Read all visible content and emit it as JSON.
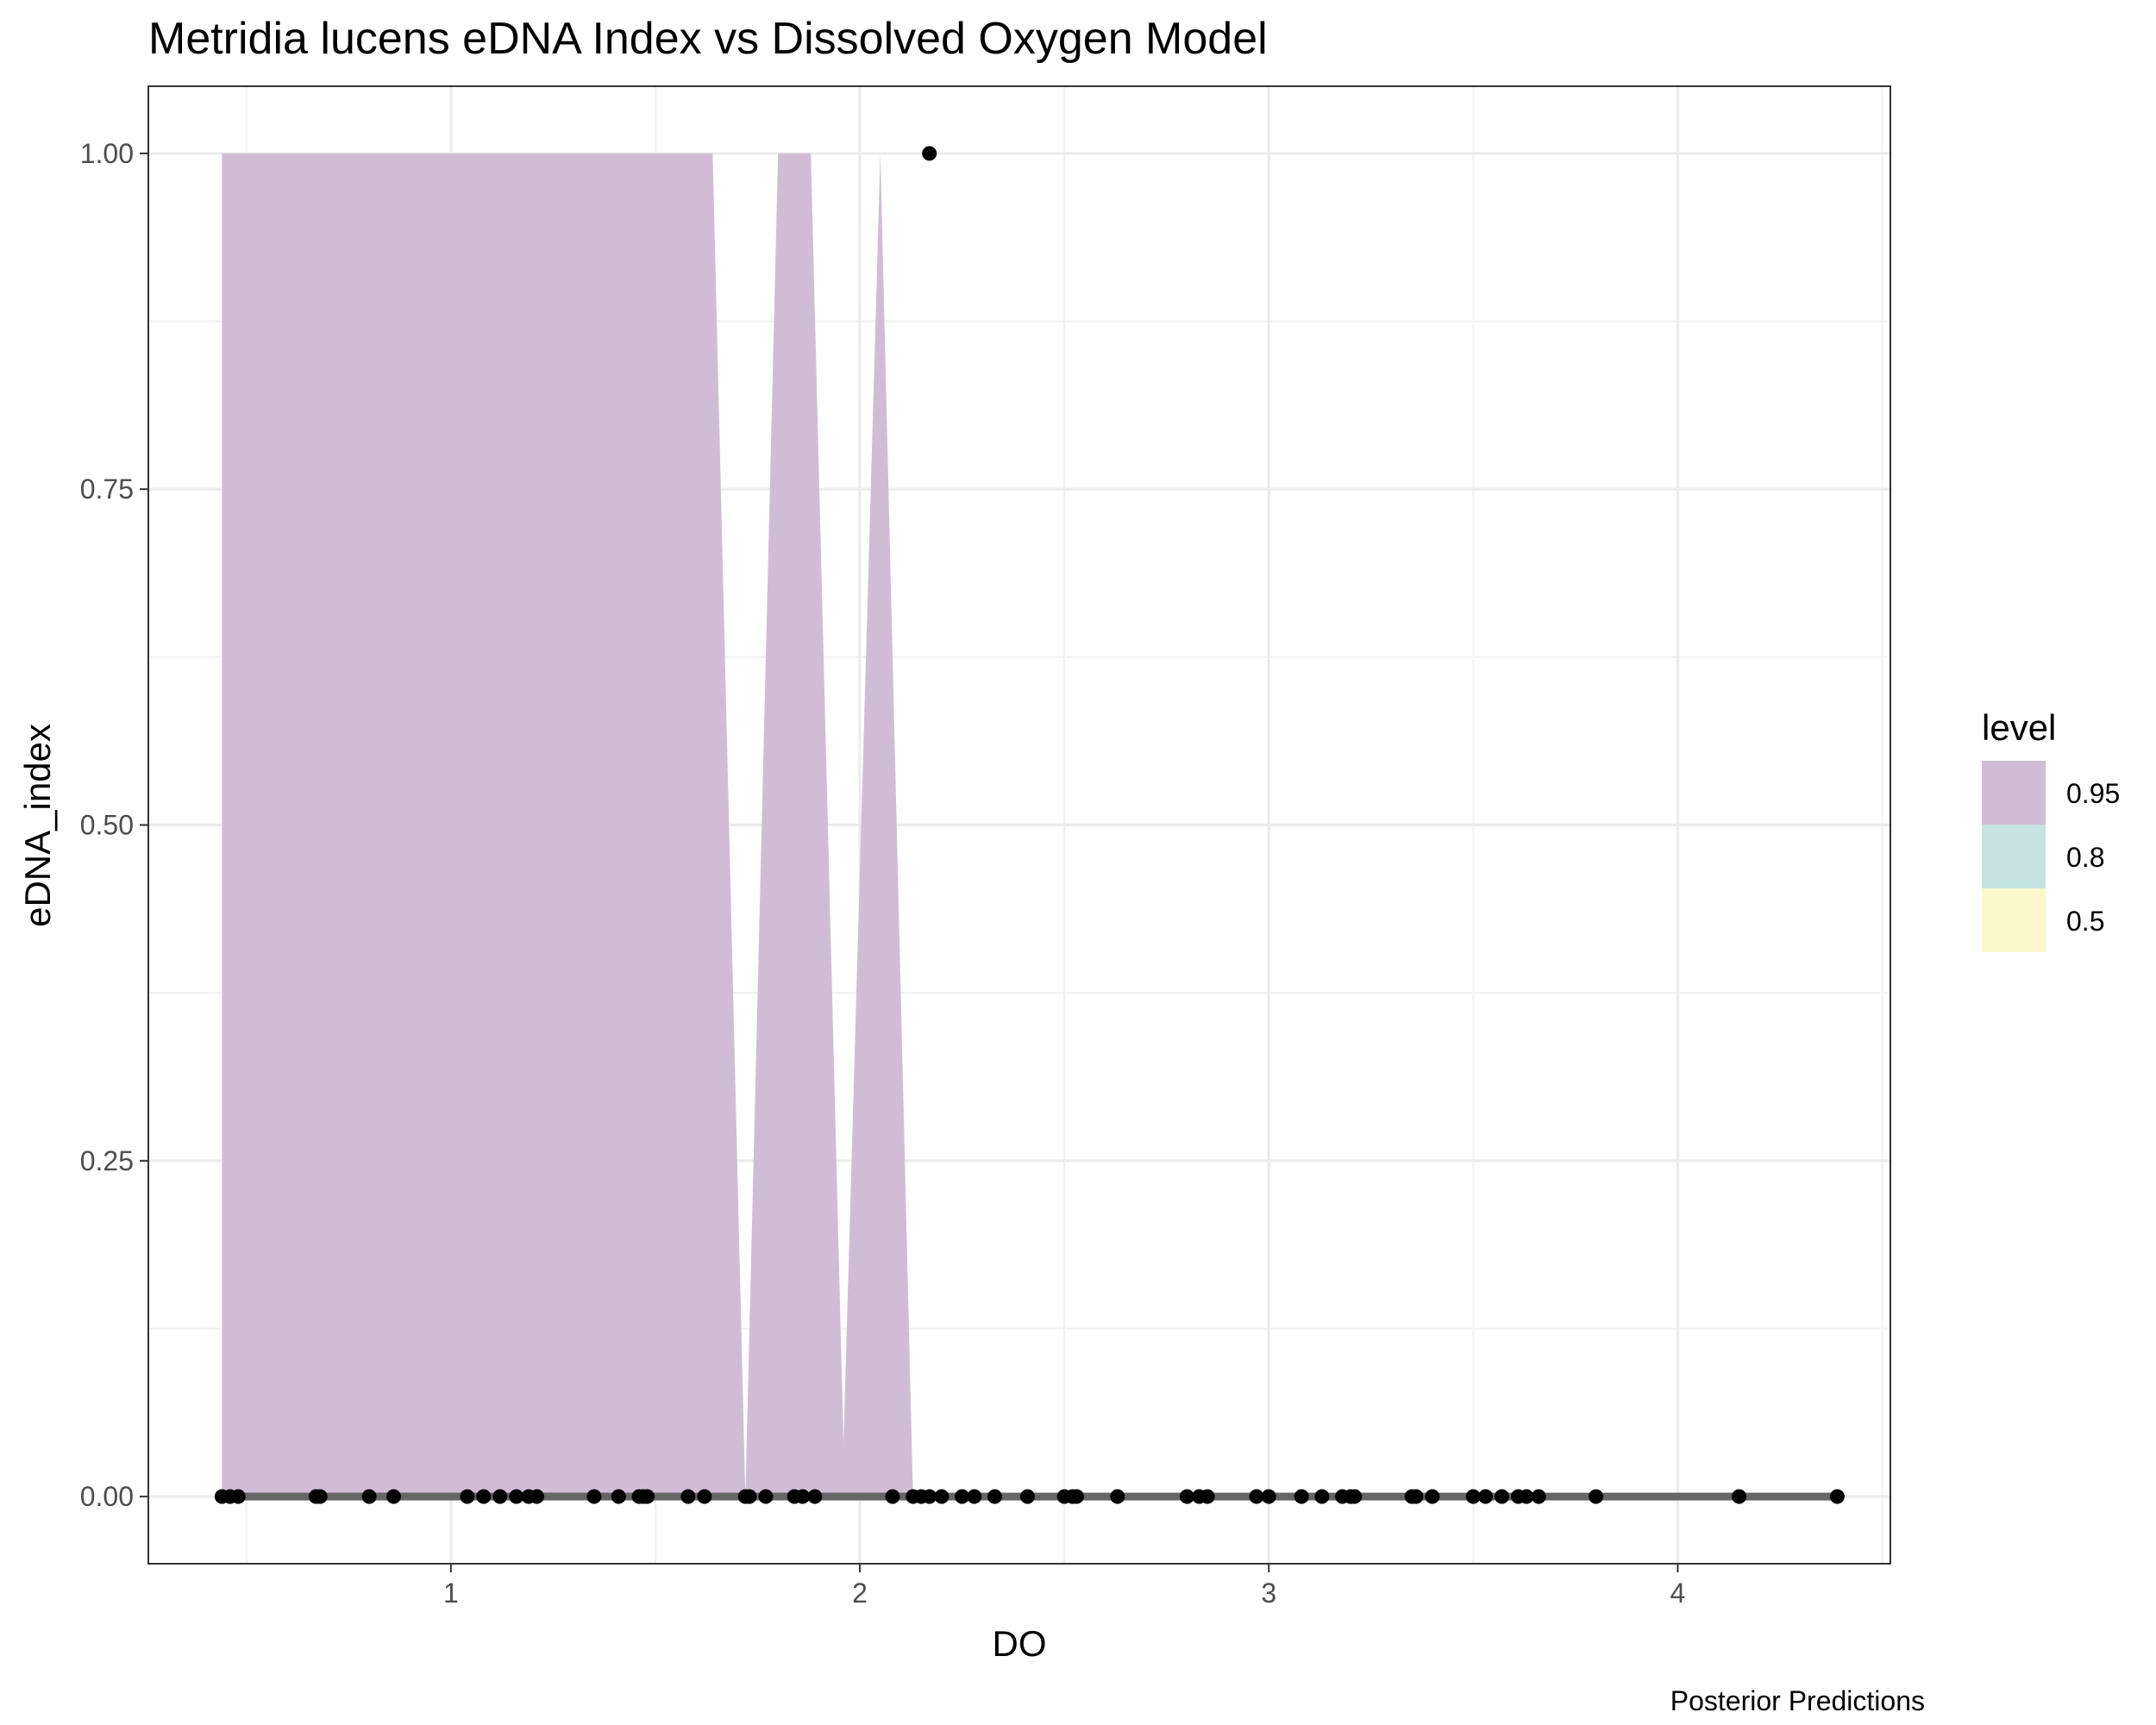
{
  "chart_data": {
    "type": "area",
    "title": "Metridia lucens eDNA Index vs Dissolved Oxygen Model",
    "xlabel": "DO",
    "ylabel": "eDNA_index",
    "caption": "Posterior Predictions",
    "xlim": [
      0.26,
      4.52
    ],
    "ylim": [
      -0.05,
      1.05
    ],
    "x_ticks": [
      1,
      2,
      3,
      4
    ],
    "x_tick_labels": [
      "1",
      "2",
      "3",
      "4"
    ],
    "y_ticks": [
      0,
      0.25,
      0.5,
      0.75,
      1
    ],
    "y_tick_labels": [
      "0.00",
      "0.25",
      "0.50",
      "0.75",
      "1.00"
    ],
    "grid": true,
    "legend": {
      "title": "level",
      "position": "right",
      "entries": [
        {
          "label": "0.95",
          "color": "#d0bdd5"
        },
        {
          "label": "0.8",
          "color": "#c7e2e2"
        },
        {
          "label": "0.5",
          "color": "#fcf7cc"
        }
      ]
    },
    "ribbon_95": {
      "color": "#d0bdd5",
      "x": [
        0.44,
        1.64,
        1.72,
        1.8,
        1.88,
        1.96,
        2.05,
        2.13
      ],
      "upper": [
        1,
        1,
        0,
        1,
        1,
        0.04,
        1,
        0
      ],
      "lower": [
        0,
        0,
        0,
        0,
        0,
        0,
        0,
        0
      ]
    },
    "median_line": {
      "color": "#666666",
      "x": [
        0.44,
        4.39
      ],
      "y": [
        0,
        0
      ]
    },
    "points": {
      "color": "#000000",
      "x": [
        0.44,
        0.46,
        0.48,
        0.67,
        0.68,
        0.8,
        0.86,
        1.04,
        1.08,
        1.12,
        1.16,
        1.19,
        1.21,
        1.35,
        1.41,
        1.46,
        1.47,
        1.48,
        1.58,
        1.62,
        1.72,
        1.73,
        1.77,
        1.84,
        1.86,
        1.89,
        2.08,
        2.13,
        2.15,
        2.17,
        2.2,
        2.25,
        2.28,
        2.33,
        2.41,
        2.5,
        2.52,
        2.53,
        2.63,
        2.8,
        2.83,
        2.85,
        2.97,
        3.0,
        3.08,
        3.13,
        3.18,
        3.2,
        3.21,
        3.35,
        3.36,
        3.4,
        3.5,
        3.53,
        3.57,
        3.61,
        3.63,
        3.66,
        3.8,
        4.15,
        4.39,
        2.17
      ],
      "y": [
        0,
        0,
        0,
        0,
        0,
        0,
        0,
        0,
        0,
        0,
        0,
        0,
        0,
        0,
        0,
        0,
        0,
        0,
        0,
        0,
        0,
        0,
        0,
        0,
        0,
        0,
        0,
        0,
        0,
        0,
        0,
        0,
        0,
        0,
        0,
        0,
        0,
        0,
        0,
        0,
        0,
        0,
        0,
        0,
        0,
        0,
        0,
        0,
        0,
        0,
        0,
        0,
        0,
        0,
        0,
        0,
        0,
        0,
        0,
        0,
        0,
        1
      ]
    }
  }
}
